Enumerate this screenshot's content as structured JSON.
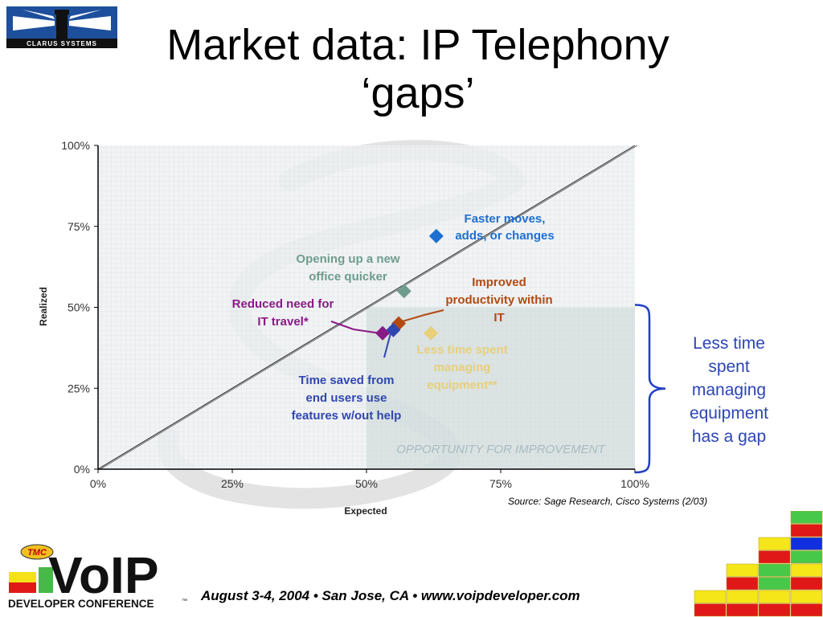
{
  "slide": {
    "title_line1": "Market data: IP Telephony",
    "title_line2": "‘gaps’",
    "source": "Source: Sage Research, Cisco Systems (2/03)",
    "gap_note": [
      "Less time",
      "spent",
      "managing",
      "equipment",
      "has a gap"
    ],
    "footer": "August 3-4, 2004 • San Jose, CA • www.voipdeveloper.com"
  },
  "logos": {
    "company": "CLARUS SYSTEMS",
    "conference_badge": "TMC",
    "conference_name": "VoIP",
    "conference_subtitle": "DEVELOPER CONFERENCE",
    "trademark": "™"
  },
  "colors": {
    "title": "#000000",
    "gap_note": "#2b45b5",
    "bracket": "#1f3fc4",
    "logo_blue": "#1d4f9c"
  },
  "chart_data": {
    "type": "scatter",
    "xlabel": "Expected",
    "ylabel": "Realized",
    "xlim": [
      0,
      100
    ],
    "ylim": [
      0,
      100
    ],
    "x_ticks": [
      "0%",
      "25%",
      "50%",
      "75%",
      "100%"
    ],
    "y_ticks": [
      "0%",
      "25%",
      "50%",
      "75%",
      "100%"
    ],
    "grid": true,
    "diagonal": true,
    "region_label": "OPPORTUNITY FOR IMPROVEMENT",
    "points": [
      {
        "label": [
          "Faster moves,",
          "adds, or changes"
        ],
        "x": 63,
        "y": 72,
        "color": "#1f6fd0"
      },
      {
        "label": [
          "Opening up a new",
          "office quicker"
        ],
        "x": 57,
        "y": 55,
        "color": "#6f9c8c"
      },
      {
        "label": [
          "Improved",
          "productivity within",
          "IT"
        ],
        "x": 56,
        "y": 45,
        "color": "#b34a12"
      },
      {
        "label": [
          "Reduced need for",
          "IT travel*"
        ],
        "x": 53,
        "y": 42,
        "color": "#8a1a86"
      },
      {
        "label": [
          "Time saved from",
          "end users use",
          "features w/out help"
        ],
        "x": 55,
        "y": 43,
        "color": "#3047b0"
      },
      {
        "label": [
          "Less time spent",
          "managing",
          "equipment**"
        ],
        "x": 62,
        "y": 42,
        "color": "#e8cf7a"
      }
    ]
  }
}
